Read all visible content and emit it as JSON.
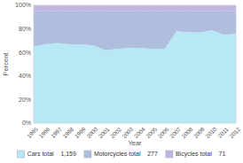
{
  "chart_data": {
    "type": "area",
    "stacked": true,
    "xlabel": "Year",
    "ylabel": "Percent",
    "x": [
      1995,
      1996,
      1997,
      1998,
      1999,
      2000,
      2001,
      2002,
      2003,
      2004,
      2005,
      2006,
      2007,
      2008,
      2009,
      2010,
      2011,
      2012
    ],
    "series": [
      {
        "name": "Cars total    1,159",
        "color": "#b8e8f5",
        "values": [
          65,
          67,
          68,
          67,
          67,
          66,
          62,
          63,
          64,
          64,
          63,
          63,
          78,
          77,
          77,
          79,
          75,
          76
        ]
      },
      {
        "name": "Motorcycles total    277",
        "color": "#b0bedd",
        "values": [
          30,
          28,
          27,
          28,
          28,
          29,
          33,
          32,
          31,
          31,
          32,
          32,
          17,
          18,
          18,
          16,
          20,
          19
        ]
      },
      {
        "name": "Bicycles total    71",
        "color": "#c0b8e0",
        "values": [
          5,
          5,
          5,
          5,
          5,
          5,
          5,
          5,
          5,
          5,
          5,
          5,
          5,
          5,
          5,
          5,
          5,
          5
        ]
      }
    ],
    "xlim": [
      1995,
      2012
    ],
    "xticks": [
      1995,
      1996,
      1997,
      1998,
      1999,
      2000,
      2001,
      2002,
      2003,
      2004,
      2005,
      2006,
      2007,
      2008,
      2009,
      2010,
      2011,
      2012
    ],
    "ylim": [
      0,
      100
    ],
    "yticks": [
      {
        "value": 0,
        "label": "0%"
      },
      {
        "value": 20,
        "label": "20%"
      },
      {
        "value": 40,
        "label": "40%"
      },
      {
        "value": 60,
        "label": "60%"
      },
      {
        "value": 80,
        "label": "80%"
      },
      {
        "value": 100,
        "label": "100%"
      }
    ],
    "grid": true,
    "legend": "bottom"
  }
}
